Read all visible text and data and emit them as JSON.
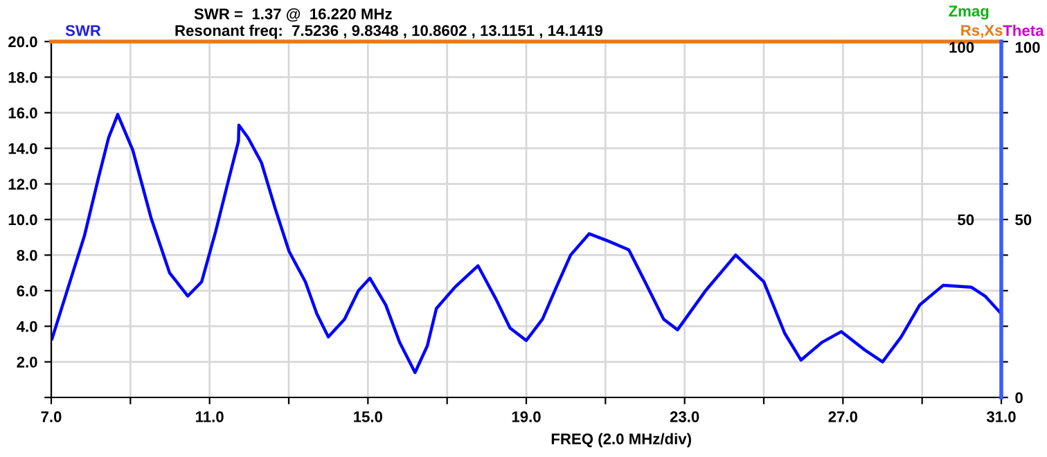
{
  "chart_data": {
    "type": "line",
    "title": "SWR =  1.37 @  16.220 MHz",
    "subtitle": "Resonant freq:  7.5236 , 9.8348 , 10.8602 , 13.1151 , 14.1419",
    "xlabel": "FREQ (2.0 MHz/div)",
    "ylabel": "SWR",
    "y2label": "Zmag",
    "y3label": "Theta",
    "series": [
      {
        "color": "#0000ff",
        "x": [
          7.02,
          7.43,
          7.84,
          8.2,
          8.45,
          8.68,
          9.06,
          9.52,
          9.99,
          10.45,
          10.8,
          11.15,
          11.5,
          11.73,
          11.74,
          11.97,
          12.31,
          12.66,
          13.01,
          13.42,
          13.71,
          14.0,
          14.41,
          14.76,
          15.05,
          15.45,
          15.8,
          16.19,
          16.5,
          16.73,
          17.2,
          17.78,
          18.24,
          18.59,
          19.0,
          19.41,
          19.76,
          20.12,
          20.59,
          21.06,
          21.59,
          22.0,
          22.47,
          22.82,
          23.53,
          24.29,
          25.0,
          25.53,
          25.94,
          26.47,
          26.96,
          27.53,
          28.0,
          28.47,
          28.94,
          29.53,
          30.24,
          30.59,
          31.0
        ],
        "values": [
          3.3,
          6.2,
          9.1,
          12.4,
          14.6,
          15.9,
          13.9,
          10.1,
          7.0,
          5.7,
          6.5,
          9.3,
          12.4,
          14.4,
          15.3,
          14.6,
          13.2,
          10.6,
          8.2,
          6.5,
          4.7,
          3.4,
          4.4,
          6.0,
          6.7,
          5.2,
          3.1,
          1.4,
          2.9,
          5.0,
          6.2,
          7.4,
          5.5,
          3.9,
          3.2,
          4.4,
          6.2,
          8.0,
          9.2,
          8.8,
          8.3,
          6.5,
          4.4,
          3.8,
          6.0,
          8.0,
          6.5,
          3.6,
          2.1,
          3.1,
          3.7,
          2.7,
          2.0,
          3.4,
          5.2,
          6.3,
          6.2,
          5.7,
          4.7
        ]
      }
    ],
    "ref_lines": [
      {
        "axis": "y",
        "value": 20.0,
        "label": "Rs,Xs",
        "color": "#e87a1a"
      }
    ],
    "xlim": [
      7.0,
      31.0
    ],
    "xticks": [
      {
        "value": 7.0,
        "label": "7.0"
      },
      {
        "value": 9.0,
        "label": null
      },
      {
        "value": 11.0,
        "label": "11.0"
      },
      {
        "value": 13.0,
        "label": null
      },
      {
        "value": 15.0,
        "label": "15.0"
      },
      {
        "value": 17.0,
        "label": null
      },
      {
        "value": 19.0,
        "label": "19.0"
      },
      {
        "value": 21.0,
        "label": null
      },
      {
        "value": 23.0,
        "label": "23.0"
      },
      {
        "value": 25.0,
        "label": null
      },
      {
        "value": 27.0,
        "label": "27.0"
      },
      {
        "value": 29.0,
        "label": null
      },
      {
        "value": 31.0,
        "label": "31.0"
      }
    ],
    "ylim": [
      0,
      20.0
    ],
    "yticks": [
      {
        "value": 0,
        "label": null
      },
      {
        "value": 2.0,
        "label": "2.0"
      },
      {
        "value": 4.0,
        "label": "4.0"
      },
      {
        "value": 6.0,
        "label": "6.0"
      },
      {
        "value": 8.0,
        "label": "8.0"
      },
      {
        "value": 10.0,
        "label": "10.0"
      },
      {
        "value": 12.0,
        "label": "12.0"
      },
      {
        "value": 14.0,
        "label": "14.0"
      },
      {
        "value": 16.0,
        "label": "16.0"
      },
      {
        "value": 18.0,
        "label": "18.0"
      },
      {
        "value": 20.0,
        "label": "20.0"
      }
    ],
    "y2lim": [
      0,
      100
    ],
    "y2ticks": [
      0,
      {
        "value": 10,
        "label": null
      },
      {
        "value": 20,
        "label": null
      },
      {
        "value": 30,
        "label": null
      },
      {
        "value": 40,
        "label": null
      },
      50,
      {
        "value": 60,
        "label": null
      },
      {
        "value": 70,
        "label": null
      },
      {
        "value": 80,
        "label": null
      },
      {
        "value": 90,
        "label": null
      },
      100
    ],
    "y3lim": [
      0,
      100
    ],
    "y3ticks": [
      50,
      100
    ],
    "grid": true,
    "line_style": "solid",
    "marker": "none"
  }
}
